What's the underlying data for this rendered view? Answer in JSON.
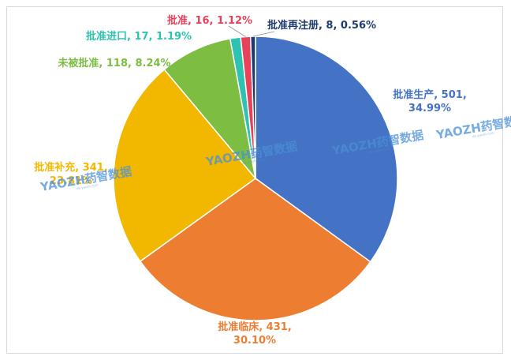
{
  "chart_data": {
    "type": "pie",
    "title": "",
    "start_angle_deg": 0,
    "direction": "clockwise",
    "slices": [
      {
        "name": "批准生产",
        "value": 501,
        "percent": "34.99%",
        "color": "#4472c4",
        "label_line1": "批准生产, 501,",
        "label_line2": "34.99%"
      },
      {
        "name": "批准临床",
        "value": 431,
        "percent": "30.10%",
        "color": "#ed7d31",
        "label_line1": "批准临床, 431,",
        "label_line2": "30.10%"
      },
      {
        "name": "批准补充",
        "value": 341,
        "percent": "23.81%",
        "color": "#f2b800",
        "label_line1": "批准补充, 341,",
        "label_line2": "23.81%"
      },
      {
        "name": "未被批准",
        "value": 118,
        "percent": "8.24%",
        "color": "#7cbd42",
        "label_line1": "未被批准, 118, 8.24%",
        "label_line2": ""
      },
      {
        "name": "批准进口",
        "value": 17,
        "percent": "1.19%",
        "color": "#2dc3b0",
        "label_line1": "批准进口, 17, 1.19%",
        "label_line2": ""
      },
      {
        "name": "批准",
        "value": 16,
        "percent": "1.12%",
        "color": "#e8425a",
        "label_line1": "批准, 16, 1.12%",
        "label_line2": ""
      },
      {
        "name": "批准再注册",
        "value": 8,
        "percent": "0.56%",
        "color": "#1f3b6e",
        "label_line1": "批准再注册, 8, 0.56%",
        "label_line2": ""
      }
    ]
  },
  "watermark": {
    "text": "YAOZH药智数据",
    "sub": "db.yaozh.com"
  }
}
